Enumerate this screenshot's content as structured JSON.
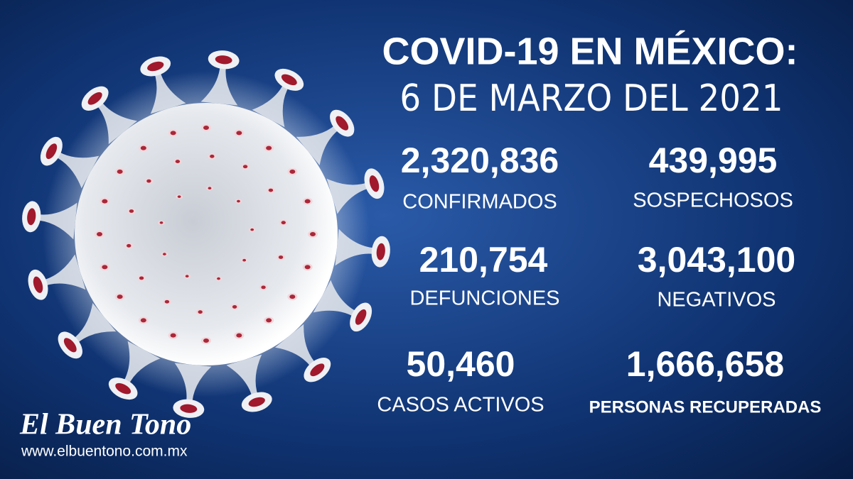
{
  "header": {
    "title": "COVID-19 EN MÉXICO:",
    "date": "6 DE MARZO DEL 2021"
  },
  "stats": [
    {
      "value": "2,320,836",
      "label": "CONFIRMADOS"
    },
    {
      "value": "439,995",
      "label": "SOSPECHOSOS"
    },
    {
      "value": "210,754",
      "label": "DEFUNCIONES"
    },
    {
      "value": "3,043,100",
      "label": "NEGATIVOS"
    },
    {
      "value": "50,460",
      "label": "CASOS ACTIVOS"
    },
    {
      "value": "1,666,658",
      "label": "PERSONAS RECUPERADAS"
    }
  ],
  "brand": {
    "name": "El Buen Tono",
    "url": "www.elbuentono.com.mx"
  }
}
